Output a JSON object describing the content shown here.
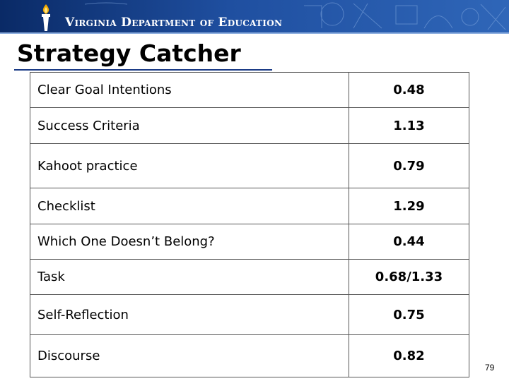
{
  "header": {
    "org_name": "Virginia Department of Education",
    "colors": {
      "banner_dark": "#0a2a66",
      "banner_light": "#2f66b8"
    },
    "logo_icon": "torch-icon"
  },
  "slide": {
    "title": "Strategy Catcher",
    "page_number": "79"
  },
  "table": {
    "rows": [
      {
        "strategy": "Clear Goal Intentions",
        "effect": "0.48"
      },
      {
        "strategy": "Success Criteria",
        "effect": "1.13"
      },
      {
        "strategy": "Kahoot practice",
        "effect": "0.79"
      },
      {
        "strategy": "Checklist",
        "effect": "1.29"
      },
      {
        "strategy": "Which One Doesn’t Belong?",
        "effect": "0.44"
      },
      {
        "strategy": "Task",
        "effect": "0.68/1.33"
      },
      {
        "strategy": "Self-Reflection",
        "effect": "0.75"
      },
      {
        "strategy": "Discourse",
        "effect": "0.82"
      }
    ]
  }
}
